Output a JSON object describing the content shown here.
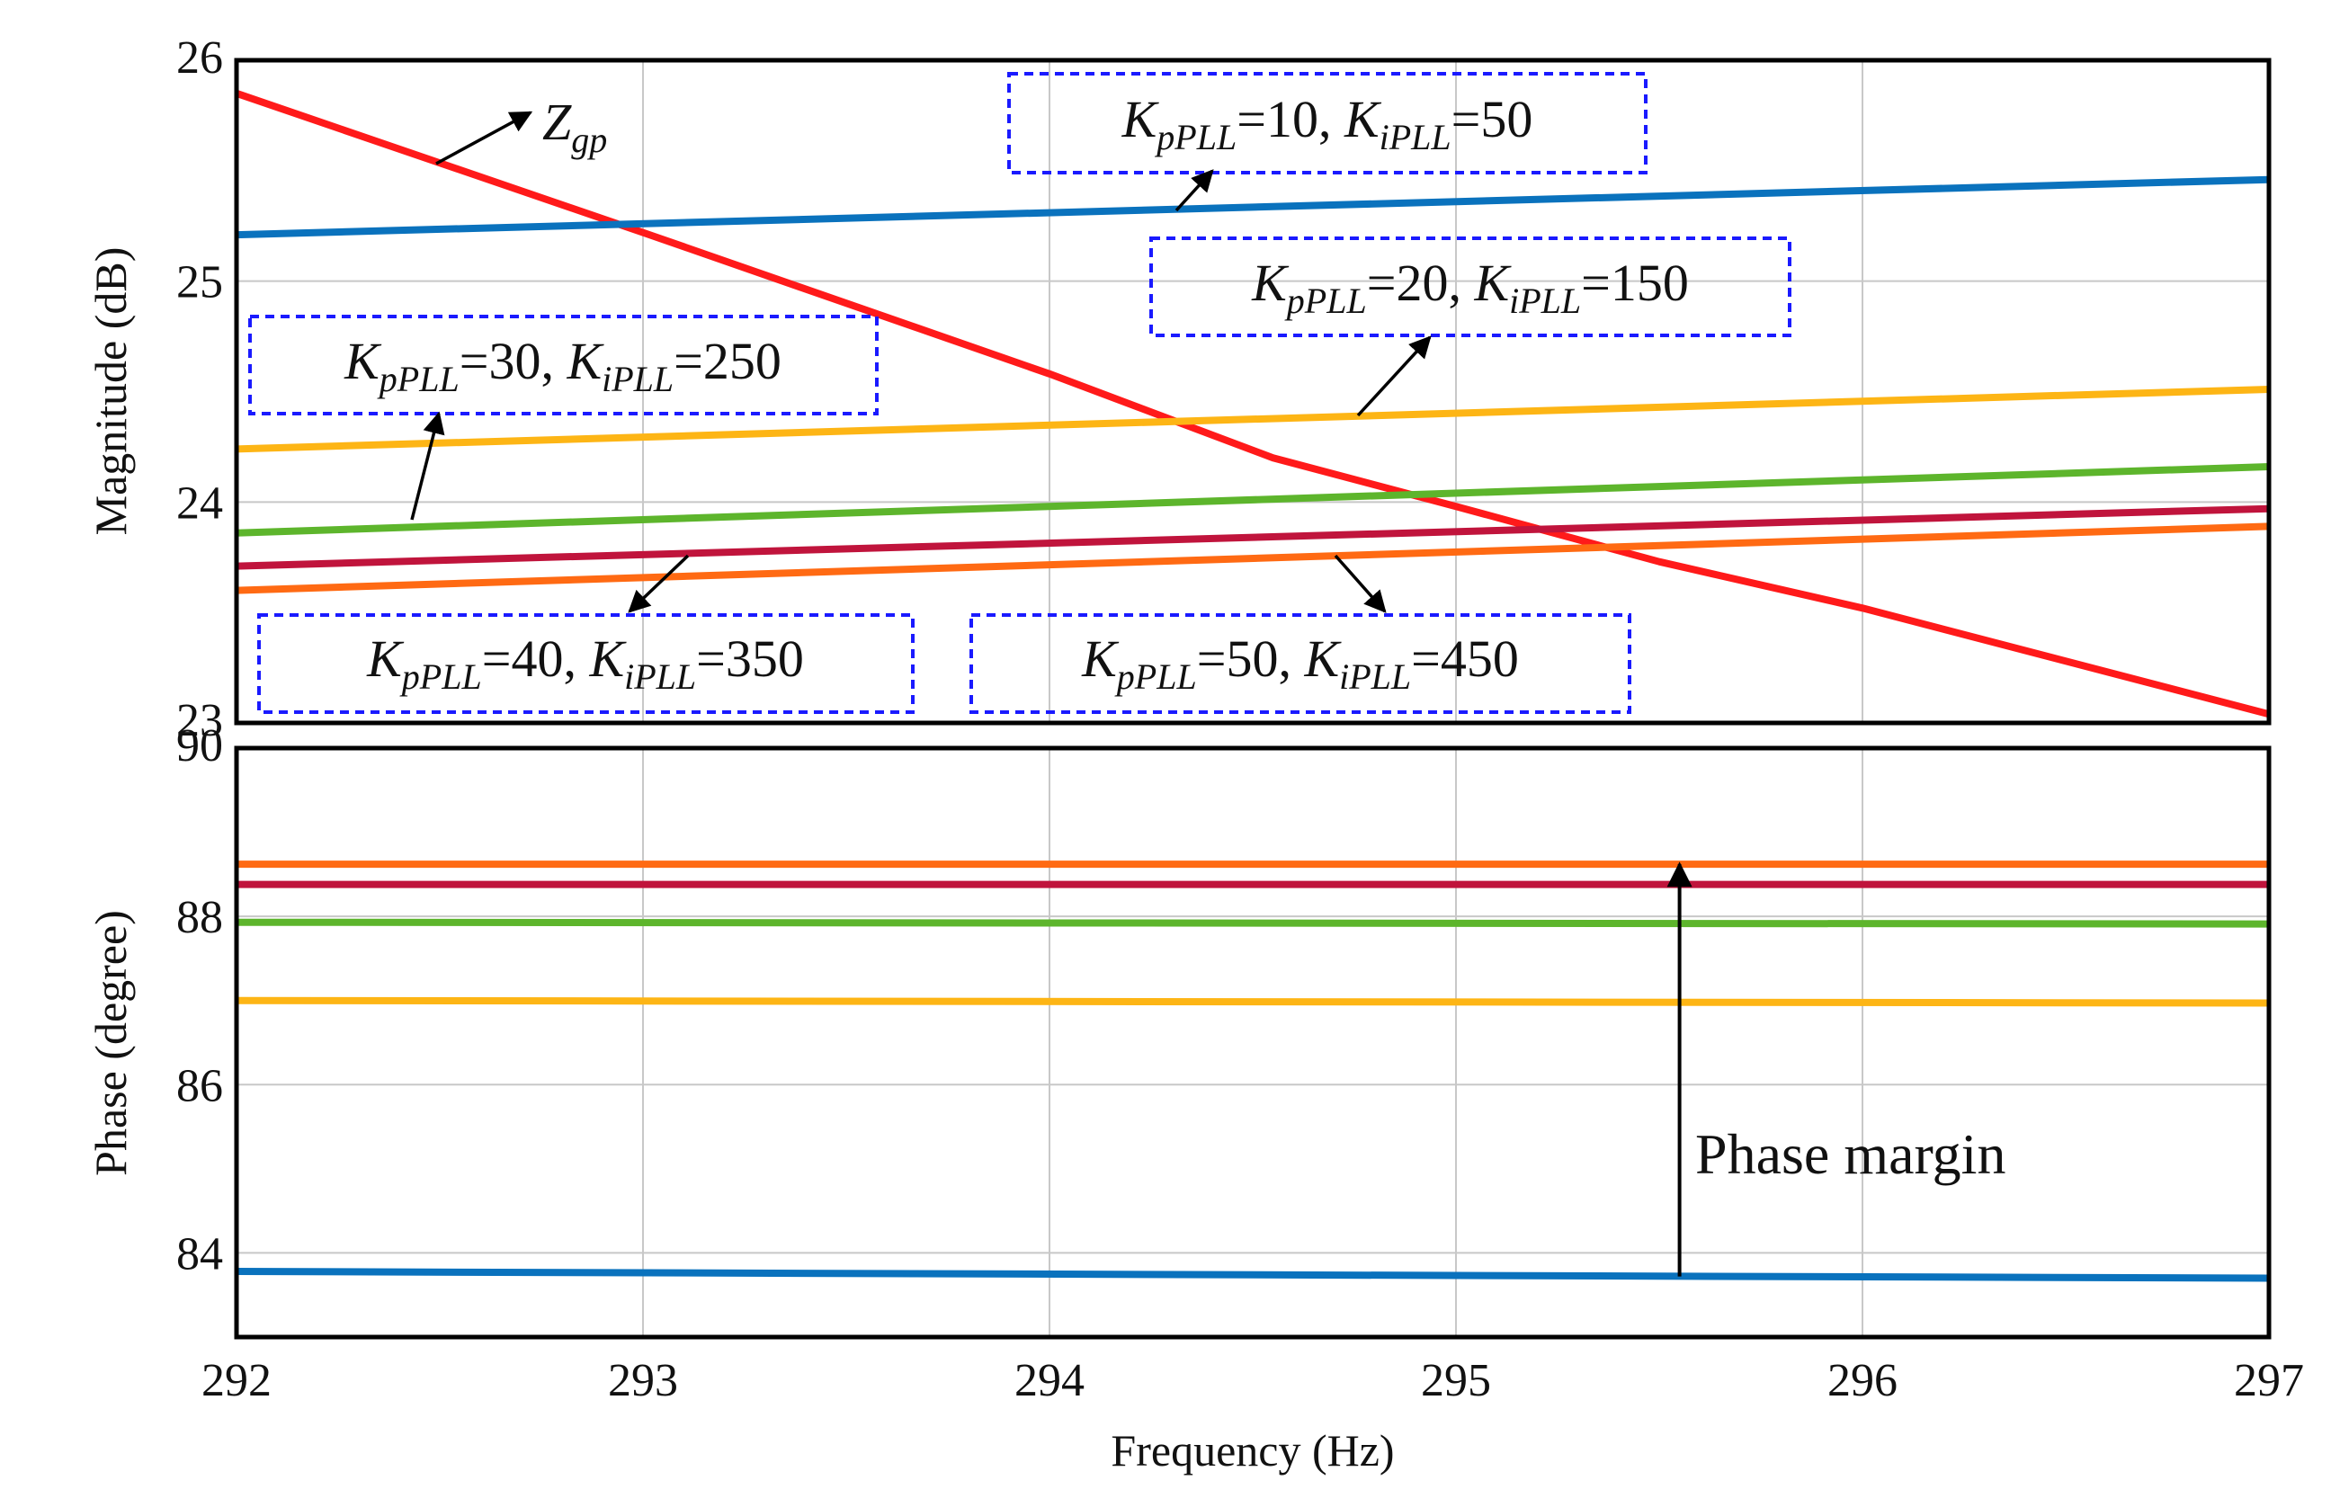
{
  "chart_data": [
    {
      "type": "line",
      "panel": "magnitude",
      "xlabel": "Frequency  (Hz)",
      "ylabel": "Magnitude (dB)",
      "xlim": [
        292,
        297
      ],
      "ylim": [
        23,
        26
      ],
      "x_ticks": [
        "292",
        "293",
        "294",
        "295",
        "296",
        "297"
      ],
      "y_ticks": [
        "23",
        "24",
        "25",
        "26"
      ],
      "grid": true,
      "series": [
        {
          "name": "Z_gp",
          "color": "#ff1a1a",
          "x": [
            292,
            293,
            294,
            294.55,
            295,
            295.5,
            296,
            297
          ],
          "values": [
            25.85,
            25.22,
            24.58,
            24.2,
            23.98,
            23.73,
            23.52,
            23.04
          ]
        },
        {
          "name": "KpPLL=10, KiPLL=50",
          "color": "#0a72bd",
          "x": [
            292,
            297
          ],
          "values": [
            25.21,
            25.46
          ]
        },
        {
          "name": "KpPLL=20, KiPLL=150",
          "color": "#fdb515",
          "x": [
            292,
            297
          ],
          "values": [
            24.24,
            24.51
          ]
        },
        {
          "name": "KpPLL=30, KiPLL=250",
          "color": "#5db52c",
          "x": [
            292,
            297
          ],
          "values": [
            23.86,
            24.16
          ]
        },
        {
          "name": "KpPLL=40, KiPLL=350",
          "color": "#c0143c",
          "x": [
            292,
            297
          ],
          "values": [
            23.71,
            23.97
          ]
        },
        {
          "name": "KpPLL=50, KiPLL=450",
          "color": "#ff6a13",
          "x": [
            292,
            297
          ],
          "values": [
            23.6,
            23.89
          ]
        }
      ],
      "annotations": [
        {
          "id": "zgp",
          "main": "Z",
          "sub": "gp"
        },
        {
          "id": "k10",
          "kp": "10",
          "ki": "50",
          "kp_sym": "K",
          "kp_sub": "pPLL",
          "ki_sym": "K",
          "ki_sub": "iPLL"
        },
        {
          "id": "k20",
          "kp": "20",
          "ki": "150",
          "kp_sym": "K",
          "kp_sub": "pPLL",
          "ki_sym": "K",
          "ki_sub": "iPLL"
        },
        {
          "id": "k30",
          "kp": "30",
          "ki": "250",
          "kp_sym": "K",
          "kp_sub": "pPLL",
          "ki_sym": "K",
          "ki_sub": "iPLL"
        },
        {
          "id": "k40",
          "kp": "40",
          "ki": "350",
          "kp_sym": "K",
          "kp_sub": "pPLL",
          "ki_sym": "K",
          "ki_sub": "iPLL"
        },
        {
          "id": "k50",
          "kp": "50",
          "ki": "450",
          "kp_sym": "K",
          "kp_sub": "pPLL",
          "ki_sym": "K",
          "ki_sub": "iPLL"
        }
      ]
    },
    {
      "type": "line",
      "panel": "phase",
      "xlabel": "Frequency  (Hz)",
      "ylabel": "Phase (degree)",
      "xlim": [
        292,
        297
      ],
      "ylim": [
        83,
        90
      ],
      "x_ticks": [
        "292",
        "293",
        "294",
        "295",
        "296",
        "297"
      ],
      "y_ticks": [
        "84",
        "86",
        "88",
        "90"
      ],
      "grid": true,
      "series": [
        {
          "name": "KpPLL=50, KiPLL=450",
          "color": "#ff6a13",
          "x": [
            292,
            297
          ],
          "values": [
            88.62,
            88.62
          ]
        },
        {
          "name": "KpPLL=40, KiPLL=350",
          "color": "#c0143c",
          "x": [
            292,
            297
          ],
          "values": [
            88.38,
            88.38
          ]
        },
        {
          "name": "KpPLL=30, KiPLL=250",
          "color": "#5db52c",
          "x": [
            292,
            297
          ],
          "values": [
            87.93,
            87.91
          ]
        },
        {
          "name": "KpPLL=20, KiPLL=150",
          "color": "#fdb515",
          "x": [
            292,
            297
          ],
          "values": [
            87.0,
            86.97
          ]
        },
        {
          "name": "KpPLL=10, KiPLL=50",
          "color": "#0a72bd",
          "x": [
            292,
            297
          ],
          "values": [
            83.78,
            83.7
          ]
        }
      ],
      "annotations": [
        {
          "id": "pm",
          "text": "Phase margin",
          "x": 295.55,
          "from": 83.72,
          "to": 88.62
        }
      ]
    }
  ]
}
